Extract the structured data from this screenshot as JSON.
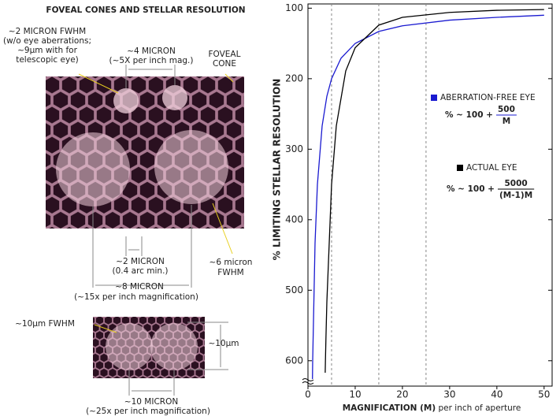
{
  "diagram": {
    "title": "FOVEAL CONES AND STELLAR RESOLUTION",
    "psf_label": [
      "~2 MICRON FWHM",
      "(w/o eye aberrations;",
      "~9µm with for",
      "telescopic eye)"
    ],
    "spacing_small": [
      "~4 MICRON",
      "(~5X per inch mag.)"
    ],
    "cone_label": [
      "FOVEAL",
      "CONE"
    ],
    "cone_size": [
      "~2 MICRON",
      "(0.4 arc min.)"
    ],
    "fwhm6": [
      "~6 micron",
      "FWHM"
    ],
    "spacing_large": [
      "~8 MICRON",
      "(~15x per inch magnification)"
    ],
    "fwhm10": "~10µm FWHM",
    "height10": "~10µm",
    "spacing_bottom": [
      "~10 MICRON",
      "(~25x per inch magnification)"
    ]
  },
  "chart_data": {
    "type": "line",
    "xlabel": [
      "MAGNIFICATION (M)",
      "per inch of aperture"
    ],
    "ylabel": "% LIMITING STELLAR RESOLUTION",
    "xlim": [
      0,
      51.7
    ],
    "ylim": [
      94,
      636
    ],
    "y_inverted": true,
    "xticks": [
      0,
      10,
      20,
      30,
      40,
      50
    ],
    "yticks": [
      100,
      200,
      300,
      400,
      500,
      600
    ],
    "reference_x": [
      5,
      15,
      25
    ],
    "series": [
      {
        "name": "ABERRATION-FREE EYE",
        "color": "#1a1ad0",
        "formula": [
          "% ~ 100 +",
          "500",
          "M"
        ],
        "x": [
          0.95,
          1,
          1.5,
          2,
          3,
          4,
          5,
          7,
          10,
          15,
          20,
          30,
          40,
          50
        ],
        "values": [
          626,
          600,
          433,
          350,
          267,
          225,
          200,
          171,
          150,
          133,
          125,
          117,
          113,
          110
        ]
      },
      {
        "name": "ACTUAL EYE",
        "color": "#000000",
        "formula": [
          "% ~ 100 +",
          "5000",
          "(M-1)M"
        ],
        "x": [
          3.65,
          3.7,
          3.8,
          4,
          5,
          6,
          8,
          10,
          15,
          20,
          30,
          40,
          50
        ],
        "values": [
          617,
          600,
          570,
          517,
          350,
          267,
          189,
          156,
          124,
          113,
          106,
          103,
          102
        ]
      }
    ]
  }
}
